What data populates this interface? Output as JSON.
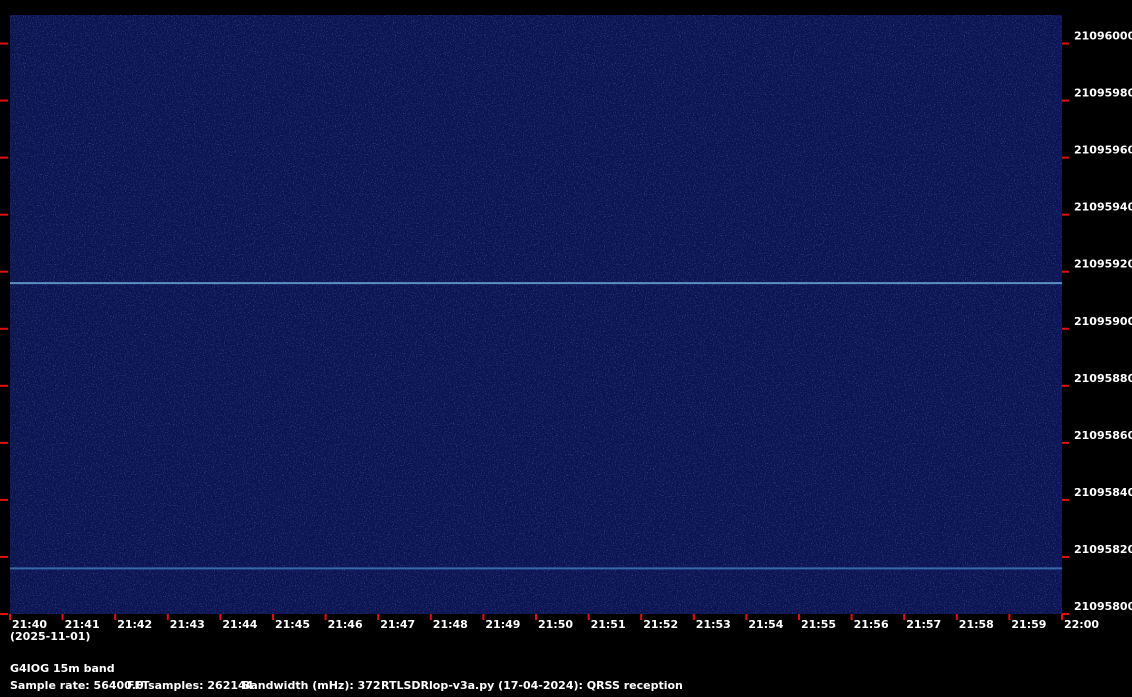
{
  "chart_data": {
    "type": "spectrogram",
    "title": "G4IOG 15m band",
    "date_label": "(2025-11-01)",
    "info": [
      "Sample rate: 56400.0",
      "FFTsamples: 262144",
      "Bandwidth (mHz): 372",
      "RTLSDRlop-v3a.py (17-04-2024): QRSS reception"
    ],
    "x_labels": [
      "21:40",
      "21:41",
      "21:42",
      "21:43",
      "21:44",
      "21:45",
      "21:46",
      "21:47",
      "21:48",
      "21:49",
      "21:50",
      "21:51",
      "21:52",
      "21:53",
      "21:54",
      "21:55",
      "21:56",
      "21:57",
      "21:58",
      "21:59",
      "22:00"
    ],
    "ylim": [
      21095800,
      21096010
    ],
    "yticks": [
      21095800,
      21095820,
      21095840,
      21095860,
      21095880,
      21095900,
      21095920,
      21095940,
      21095960,
      21095980,
      21096000
    ],
    "tick_color": "#e01010",
    "background_color": "#0b1352",
    "signals": [
      {
        "value": 21095916,
        "color": "#6aa6d8"
      },
      {
        "value": 21095816,
        "color": "#3f78b8"
      }
    ]
  }
}
